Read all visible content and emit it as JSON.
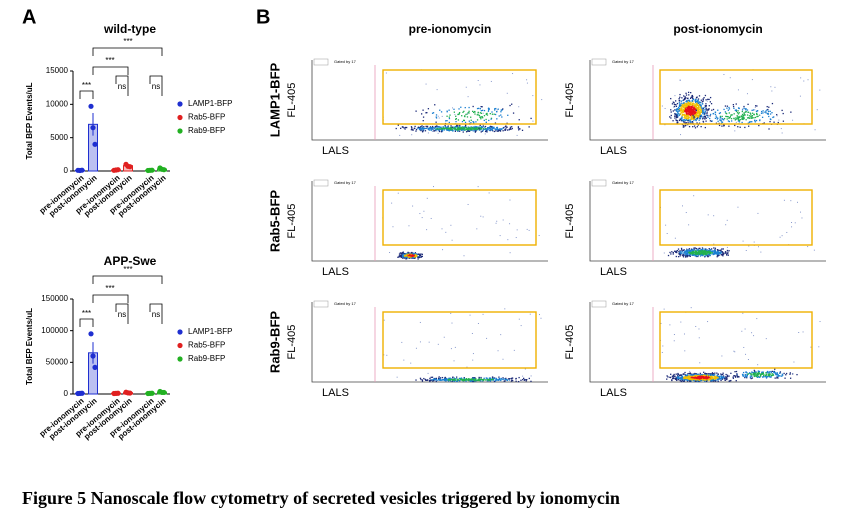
{
  "panel_labels": [
    "A",
    "B"
  ],
  "chart_data": [
    {
      "type": "bar",
      "title": "wild-type",
      "y_label": "Total BFP Events/uL",
      "categories": [
        "pre-ionomycin",
        "post-ionomycin",
        "pre-ionomycin",
        "post-ionomycin",
        "pre-ionomycin",
        "post-ionomycin"
      ],
      "ylim": [
        0,
        15000
      ],
      "yticks": [
        0,
        5000,
        10000,
        15000
      ],
      "series": [
        {
          "name": "LAMP1-BFP",
          "color": "#1f2fd0",
          "values": [
            100,
            7000,
            null,
            null,
            null,
            null
          ],
          "errors": [
            50,
            1700,
            null,
            null,
            null,
            null
          ],
          "points": [
            [
              100,
              80,
              120
            ],
            [
              9700,
              6500,
              4000
            ],
            null,
            null,
            null,
            null
          ]
        },
        {
          "name": "Rab5-BFP",
          "color": "#e02020",
          "values": [
            null,
            null,
            150,
            800,
            null,
            null
          ],
          "errors": [
            null,
            null,
            60,
            150,
            null,
            null
          ],
          "points": [
            null,
            null,
            [
              100,
              150,
              200
            ],
            [
              1000,
              700,
              650
            ],
            null,
            null
          ]
        },
        {
          "name": "Rab9-BFP",
          "color": "#22b022",
          "values": [
            null,
            null,
            null,
            null,
            100,
            300
          ],
          "errors": [
            null,
            null,
            null,
            null,
            50,
            120
          ],
          "points": [
            null,
            null,
            null,
            null,
            [
              80,
              100,
              120
            ],
            [
              450,
              250,
              200
            ]
          ]
        }
      ],
      "annotations": [
        "***",
        "ns",
        "ns",
        "***",
        "***"
      ]
    },
    {
      "type": "bar",
      "title": "APP-Swe",
      "y_label": "Total BFP Events/uL",
      "categories": [
        "pre-ionomycin",
        "post-ionomycin",
        "pre-ionomycin",
        "post-ionomycin",
        "pre-ionomycin",
        "post-ionomycin"
      ],
      "ylim": [
        0,
        150000
      ],
      "yticks": [
        0,
        50000,
        100000,
        150000
      ],
      "series": [
        {
          "name": "LAMP1-BFP",
          "color": "#1f2fd0",
          "values": [
            1000,
            65000,
            null,
            null,
            null,
            null
          ],
          "errors": [
            500,
            17000,
            null,
            null,
            null,
            null
          ],
          "points": [
            [
              800,
              1000,
              1200
            ],
            [
              95000,
              60000,
              42000
            ],
            null,
            null,
            null,
            null
          ]
        },
        {
          "name": "Rab5-BFP",
          "color": "#e02020",
          "values": [
            null,
            null,
            1000,
            2000,
            null,
            null
          ],
          "errors": [
            null,
            null,
            500,
            800,
            null,
            null
          ],
          "points": [
            null,
            null,
            [
              800,
              1000,
              1200
            ],
            [
              2800,
              1800,
              1500
            ],
            null,
            null
          ]
        },
        {
          "name": "Rab9-BFP",
          "color": "#22b022",
          "values": [
            null,
            null,
            null,
            null,
            1000,
            3000
          ],
          "errors": [
            null,
            null,
            null,
            null,
            500,
            1000
          ],
          "points": [
            null,
            null,
            null,
            null,
            [
              800,
              1000,
              1200
            ],
            [
              4000,
              2500,
              2500
            ]
          ]
        }
      ],
      "annotations": [
        "***",
        "ns",
        "ns",
        "***",
        "***"
      ]
    }
  ],
  "flow": {
    "columns": [
      "pre-ionomycin",
      "post-ionomycin"
    ],
    "rows": [
      "LAMP1-BFP",
      "Rab5-BFP",
      "Rab9-BFP"
    ],
    "x_label": "LALS",
    "y_label": "FL-405",
    "gate_text": "Gated by 17"
  },
  "caption": "Figure 5 Nanoscale flow cytometry of secreted vesicles triggered by ionomycin"
}
